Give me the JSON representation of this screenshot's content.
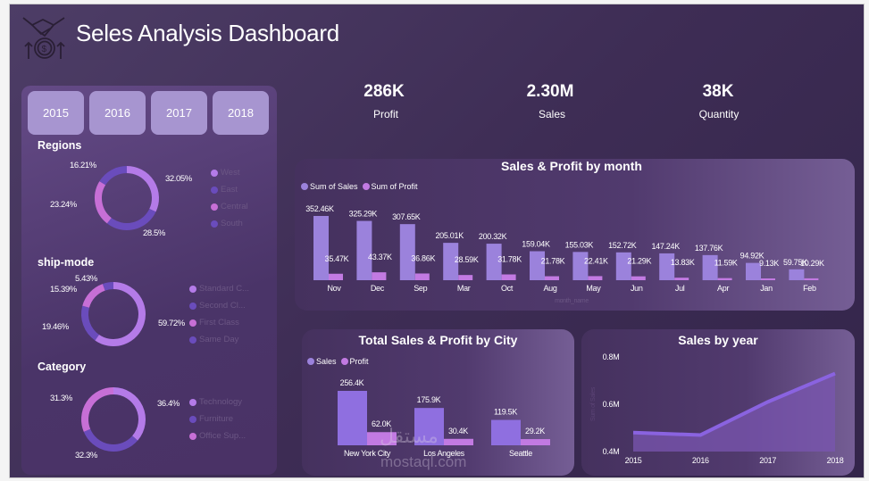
{
  "header": {
    "title": "Seles Analysis Dashboard",
    "logo_icon": "handshake-money-icon"
  },
  "year_filters": [
    "2015",
    "2016",
    "2017",
    "2018"
  ],
  "kpis": [
    {
      "value": "286K",
      "label": "Profit"
    },
    {
      "value": "2.30M",
      "label": "Sales"
    },
    {
      "value": "38K",
      "label": "Quantity"
    }
  ],
  "colors": {
    "sales": "#9b82dc",
    "profit": "#c27ae2",
    "light": "#b47be8",
    "dark": "#6a4cbc",
    "pink": "#c76fd6"
  },
  "donuts": {
    "regions": {
      "title": "Regions",
      "legend": [
        "West",
        "East",
        "Central",
        "South"
      ],
      "segments": [
        {
          "name": "West",
          "pct": 32.05,
          "label": "32.05%",
          "color": "#b47be8"
        },
        {
          "name": "South",
          "pct": 28.5,
          "label": "28.5%",
          "color": "#6a4cbc"
        },
        {
          "name": "Central",
          "pct": 23.24,
          "label": "23.24%",
          "color": "#c76fd6"
        },
        {
          "name": "East",
          "pct": 16.21,
          "label": "16.21%",
          "color": "#6a4cbc"
        }
      ]
    },
    "ship_mode": {
      "title": "ship-mode",
      "legend": [
        "Standard C...",
        "Second Cl...",
        "First Class",
        "Same Day"
      ],
      "segments": [
        {
          "name": "Standard Class",
          "pct": 59.72,
          "label": "59.72%",
          "color": "#b47be8"
        },
        {
          "name": "Second Class",
          "pct": 19.46,
          "label": "19.46%",
          "color": "#6a4cbc"
        },
        {
          "name": "First Class",
          "pct": 15.39,
          "label": "15.39%",
          "color": "#c76fd6"
        },
        {
          "name": "Same Day",
          "pct": 5.43,
          "label": "5.43%",
          "color": "#6a4cbc"
        }
      ]
    },
    "category": {
      "title": "Category",
      "legend": [
        "Technology",
        "Furniture",
        "Office Sup..."
      ],
      "segments": [
        {
          "name": "Technology",
          "pct": 36.4,
          "label": "36.4%",
          "color": "#b47be8"
        },
        {
          "name": "Furniture",
          "pct": 32.3,
          "label": "32.3%",
          "color": "#6a4cbc"
        },
        {
          "name": "Office Supplies",
          "pct": 31.3,
          "label": "31.3%",
          "color": "#c76fd6"
        }
      ]
    }
  },
  "legend_colors": {
    "regions": [
      "#b47be8",
      "#6a4cbc",
      "#c76fd6",
      "#6a4cbc"
    ],
    "ship_mode": [
      "#b47be8",
      "#6a4cbc",
      "#c76fd6",
      "#6a4cbc"
    ],
    "category": [
      "#b47be8",
      "#6a4cbc",
      "#c76fd6"
    ]
  },
  "chart_data": [
    {
      "type": "bar",
      "title": "Sales & Profit by month",
      "xlabel": "month_name",
      "categories": [
        "Nov",
        "Dec",
        "Sep",
        "Mar",
        "Oct",
        "Aug",
        "May",
        "Jun",
        "Jul",
        "Apr",
        "Jan",
        "Feb"
      ],
      "series": [
        {
          "name": "Sum of Sales",
          "values": [
            352.46,
            325.29,
            307.65,
            205.01,
            200.32,
            159.04,
            155.03,
            152.72,
            147.24,
            137.76,
            94.92,
            59.75
          ],
          "labels": [
            "352.46K",
            "325.29K",
            "307.65K",
            "205.01K",
            "200.32K",
            "159.04K",
            "155.03K",
            "152.72K",
            "147.24K",
            "137.76K",
            "94.92K",
            "59.75K"
          ]
        },
        {
          "name": "Sum of Profit",
          "values": [
            35.47,
            43.37,
            36.86,
            28.59,
            31.78,
            21.78,
            22.41,
            21.29,
            13.83,
            11.59,
            9.13,
            10.29
          ],
          "labels": [
            "35.47K",
            "43.37K",
            "36.86K",
            "28.59K",
            "31.78K",
            "21.78K",
            "22.41K",
            "21.29K",
            "13.83K",
            "11.59K",
            "9.13K",
            "10.29K"
          ]
        }
      ],
      "legend": "top-left",
      "grid": false
    },
    {
      "type": "bar",
      "title": "Total Sales & Profit by City",
      "categories": [
        "New York City",
        "Los Angeles",
        "Seattle"
      ],
      "series": [
        {
          "name": "Sales",
          "values": [
            256.4,
            175.9,
            119.5
          ],
          "labels": [
            "256.4K",
            "175.9K",
            "119.5K"
          ]
        },
        {
          "name": "Profit",
          "values": [
            62.0,
            30.4,
            29.2
          ],
          "labels": [
            "62.0K",
            "30.4K",
            "29.2K"
          ]
        }
      ],
      "legend": "top-left",
      "grid": false
    },
    {
      "type": "area",
      "title": "Sales by year",
      "ylabel": "Sum of Sales",
      "x": [
        "2015",
        "2016",
        "2017",
        "2018"
      ],
      "y": [
        0.48,
        0.47,
        0.61,
        0.73
      ],
      "yticks": [
        "0.4M",
        "0.6M",
        "0.8M"
      ],
      "ylim": [
        0.4,
        0.8
      ],
      "grid": false
    }
  ],
  "watermark": {
    "arabic": "مستقل",
    "latin": "mostaql.com"
  }
}
